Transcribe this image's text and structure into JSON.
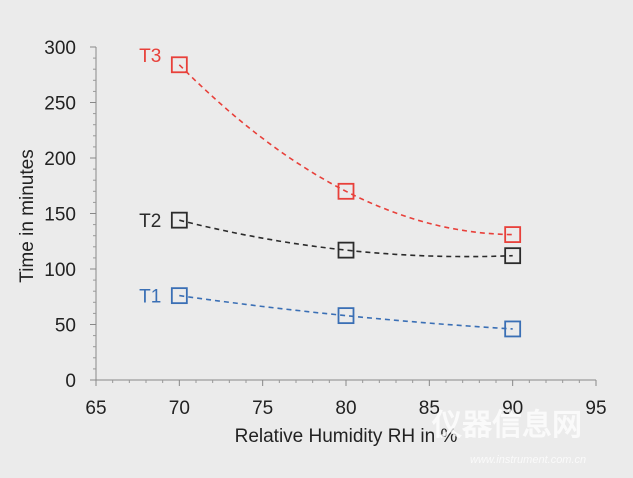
{
  "chart_data": {
    "type": "scatter",
    "xlabel": "Relative Humidity RH in %",
    "ylabel": "Time in minutes",
    "xlim": [
      65,
      95
    ],
    "ylim": [
      0,
      300
    ],
    "x_ticks": [
      65,
      70,
      75,
      80,
      85,
      90,
      95
    ],
    "y_ticks": [
      0,
      50,
      100,
      150,
      200,
      250,
      300
    ],
    "grid": false,
    "series": [
      {
        "name": "T1",
        "color": "#3a6fb5",
        "x": [
          70,
          80,
          90
        ],
        "y": [
          76,
          58,
          46
        ]
      },
      {
        "name": "T2",
        "color": "#2b2b2b",
        "x": [
          70,
          80,
          90
        ],
        "y": [
          144,
          117,
          112
        ]
      },
      {
        "name": "T3",
        "color": "#e8403a",
        "x": [
          70,
          80,
          90
        ],
        "y": [
          284,
          170,
          131
        ]
      }
    ]
  },
  "watermark": {
    "text": "仪器信息网",
    "url": "www.instrument.com.cn"
  }
}
